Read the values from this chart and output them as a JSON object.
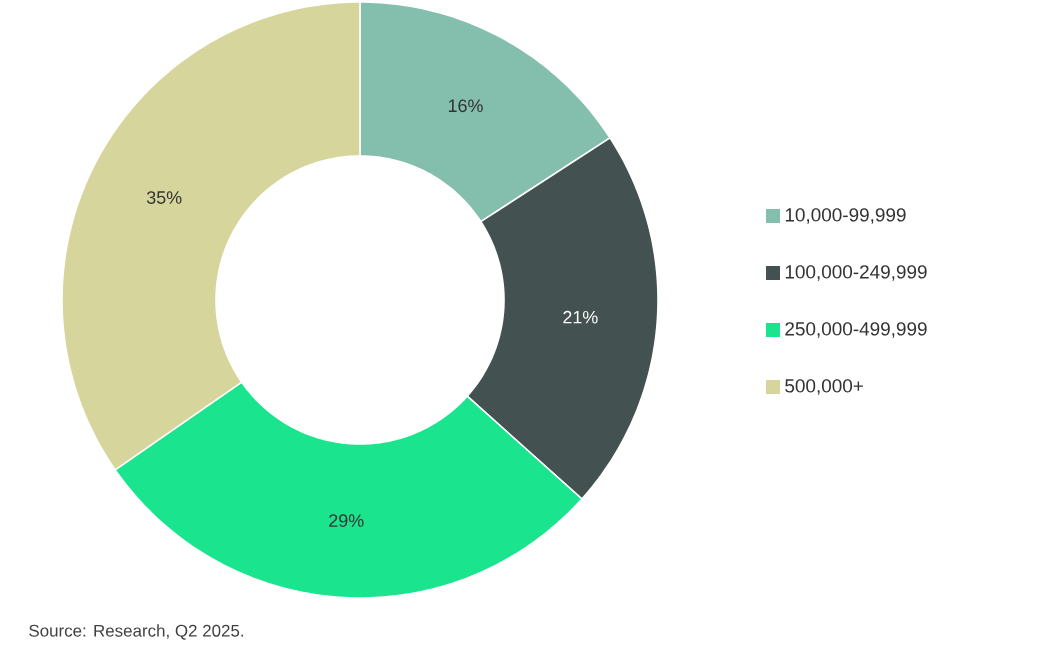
{
  "chart_data": {
    "type": "donut",
    "categories": [
      "10,000-99,999",
      "100,000-249,999",
      "250,000-499,999",
      "500,000+"
    ],
    "values": [
      16,
      21,
      29,
      35
    ],
    "colors": [
      "#84bfad",
      "#435150",
      "#1ae58e",
      "#d6d59b"
    ],
    "value_labels": [
      "16%",
      "21%",
      "29%",
      "35%"
    ],
    "legend": "right",
    "annotations": [
      "Source: Research, Q2 2025."
    ]
  }
}
